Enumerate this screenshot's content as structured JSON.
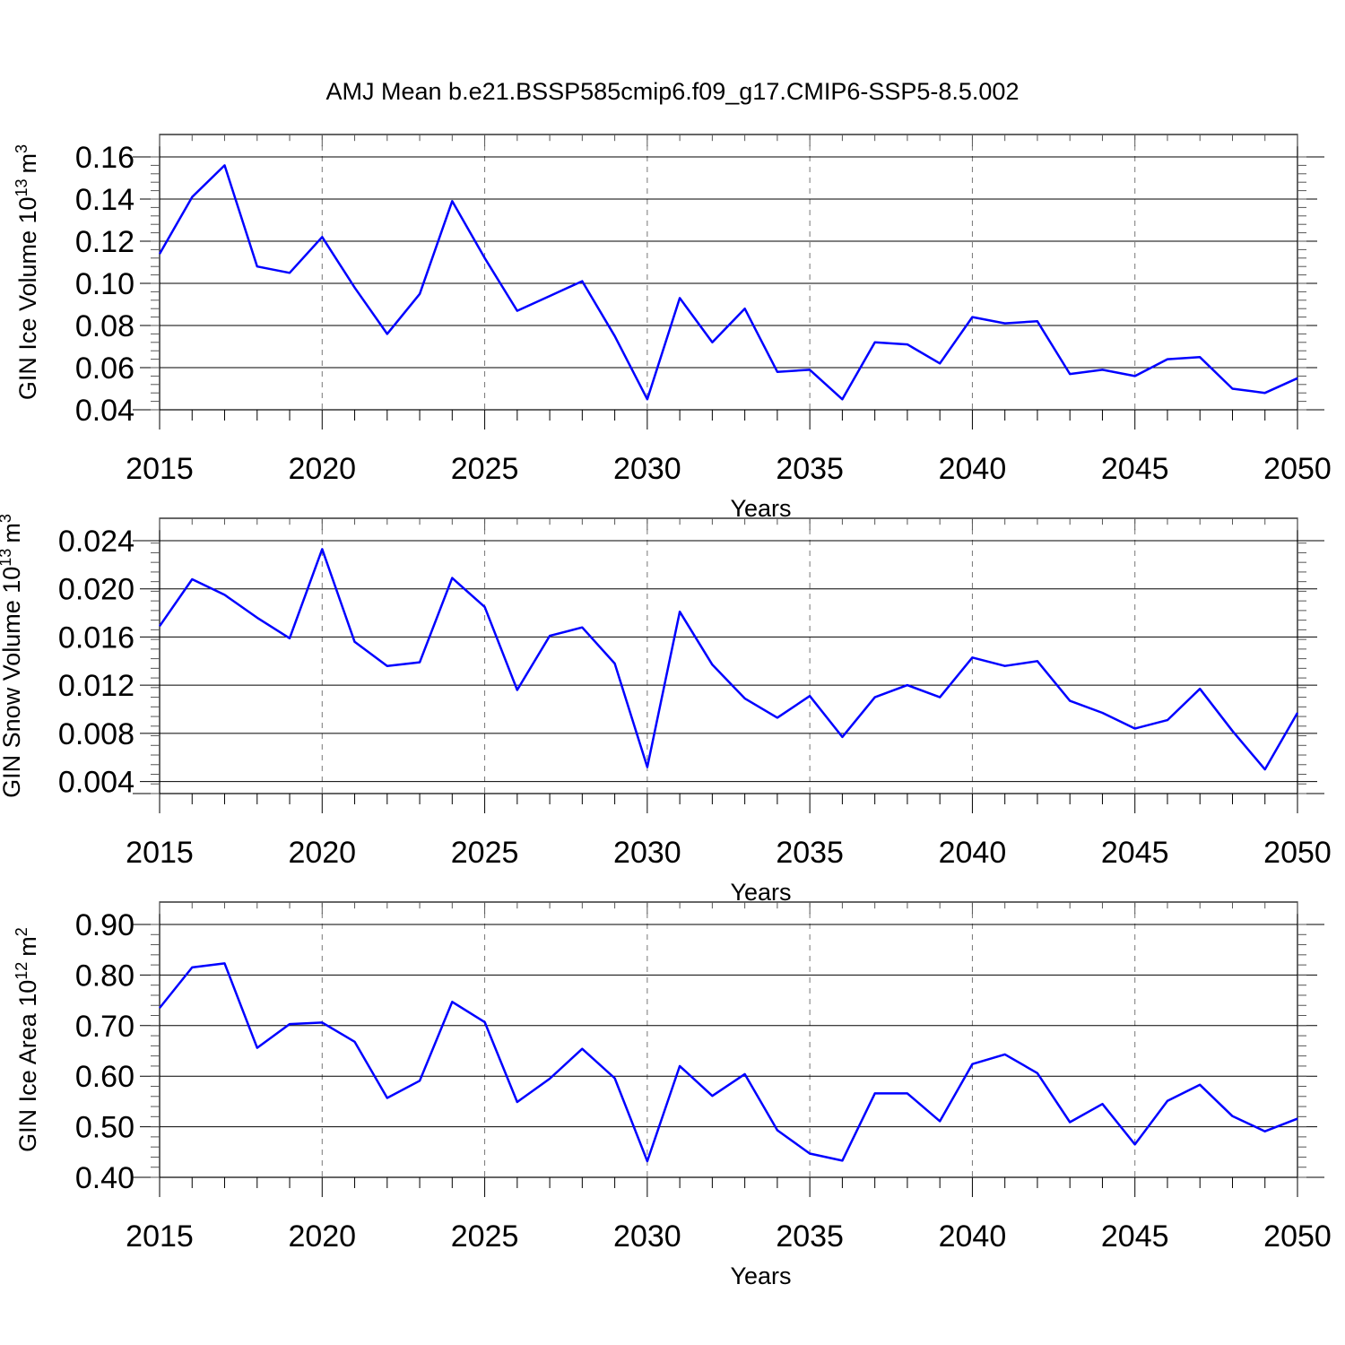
{
  "figure": {
    "title": "AMJ Mean b.e21.BSSP585cmip6.f09_g17.CMIP6-SSP5-8.5.002",
    "line_color": "#0000ff",
    "grid_color": "#777777"
  },
  "chart_data": [
    {
      "type": "line",
      "title": "AMJ Mean b.e21.BSSP585cmip6.f09_g17.CMIP6-SSP5-8.5.002",
      "xlabel": "Years",
      "ylabel": "GIN Ice Volume 10",
      "ylabel_exp": "13",
      "ylabel_unit": "m",
      "ylabel_unit_exp": "3",
      "xlim": [
        2015,
        2050
      ],
      "ylim": [
        0.04,
        0.16
      ],
      "ylim_axis": [
        0.04,
        0.16
      ],
      "x_ticks": [
        2015,
        2020,
        2025,
        2030,
        2035,
        2040,
        2045,
        2050
      ],
      "y_ticks": [
        0.04,
        0.06,
        0.08,
        0.1,
        0.12,
        0.14,
        0.16
      ],
      "y_tick_labels": [
        "0.04",
        "0.06",
        "0.08",
        "0.10",
        "0.12",
        "0.14",
        "0.16"
      ],
      "grid": "dashed vertical at major x ticks",
      "series": [
        {
          "x": [
            2015,
            2016,
            2017,
            2018,
            2019,
            2020,
            2021,
            2022,
            2023,
            2024,
            2025,
            2026,
            2027,
            2028,
            2029,
            2030,
            2031,
            2032,
            2033,
            2034,
            2035,
            2036,
            2037,
            2038,
            2039,
            2040,
            2041,
            2042,
            2043,
            2044,
            2045,
            2046,
            2047,
            2048,
            2049,
            2050
          ],
          "values": [
            0.114,
            0.141,
            0.156,
            0.108,
            0.105,
            0.122,
            0.098,
            0.076,
            0.095,
            0.139,
            0.112,
            0.087,
            0.094,
            0.101,
            0.075,
            0.045,
            0.093,
            0.072,
            0.088,
            0.058,
            0.059,
            0.045,
            0.072,
            0.071,
            0.062,
            0.084,
            0.081,
            0.082,
            0.057,
            0.059,
            0.056,
            0.064,
            0.065,
            0.05,
            0.048,
            0.055
          ]
        }
      ]
    },
    {
      "type": "line",
      "xlabel": "Years",
      "ylabel": "GIN Snow Volume 10",
      "ylabel_exp": "13",
      "ylabel_unit": "m",
      "ylabel_unit_exp": "3",
      "xlim": [
        2015,
        2050
      ],
      "ylim": [
        0.003,
        0.024
      ],
      "ylim_axis": [
        0.003,
        0.024
      ],
      "x_ticks": [
        2015,
        2020,
        2025,
        2030,
        2035,
        2040,
        2045,
        2050
      ],
      "y_ticks": [
        0.004,
        0.008,
        0.012,
        0.016,
        0.02,
        0.024
      ],
      "y_tick_labels": [
        "0.004",
        "0.008",
        "0.012",
        "0.016",
        "0.020",
        "0.024"
      ],
      "grid": "dashed vertical at major x ticks",
      "series": [
        {
          "x": [
            2015,
            2016,
            2017,
            2018,
            2019,
            2020,
            2021,
            2022,
            2023,
            2024,
            2025,
            2026,
            2027,
            2028,
            2029,
            2030,
            2031,
            2032,
            2033,
            2034,
            2035,
            2036,
            2037,
            2038,
            2039,
            2040,
            2041,
            2042,
            2043,
            2044,
            2045,
            2046,
            2047,
            2048,
            2049,
            2050
          ],
          "values": [
            0.0169,
            0.0208,
            0.0195,
            0.0176,
            0.0159,
            0.0233,
            0.0156,
            0.0136,
            0.0139,
            0.0209,
            0.0185,
            0.0116,
            0.0161,
            0.0168,
            0.0138,
            0.0052,
            0.0181,
            0.0137,
            0.0109,
            0.0093,
            0.0111,
            0.0077,
            0.011,
            0.012,
            0.011,
            0.0143,
            0.0136,
            0.014,
            0.0107,
            0.0097,
            0.0084,
            0.0091,
            0.0117,
            0.0082,
            0.005,
            0.0097
          ]
        }
      ]
    },
    {
      "type": "line",
      "xlabel": "Years",
      "ylabel": "GIN Ice Area 10",
      "ylabel_exp": "12",
      "ylabel_unit": "m",
      "ylabel_unit_exp": "2",
      "xlim": [
        2015,
        2050
      ],
      "ylim": [
        0.4,
        0.9
      ],
      "ylim_axis": [
        0.4,
        0.9
      ],
      "x_ticks": [
        2015,
        2020,
        2025,
        2030,
        2035,
        2040,
        2045,
        2050
      ],
      "y_ticks": [
        0.4,
        0.5,
        0.6,
        0.7,
        0.8,
        0.9
      ],
      "y_tick_labels": [
        "0.40",
        "0.50",
        "0.60",
        "0.70",
        "0.80",
        "0.90"
      ],
      "grid": "dashed vertical at major x ticks",
      "series": [
        {
          "x": [
            2015,
            2016,
            2017,
            2018,
            2019,
            2020,
            2021,
            2022,
            2023,
            2024,
            2025,
            2026,
            2027,
            2028,
            2029,
            2030,
            2031,
            2032,
            2033,
            2034,
            2035,
            2036,
            2037,
            2038,
            2039,
            2040,
            2041,
            2042,
            2043,
            2044,
            2045,
            2046,
            2047,
            2048,
            2049,
            2050
          ],
          "values": [
            0.735,
            0.815,
            0.823,
            0.656,
            0.703,
            0.706,
            0.668,
            0.557,
            0.591,
            0.747,
            0.707,
            0.549,
            0.595,
            0.654,
            0.596,
            0.432,
            0.62,
            0.561,
            0.604,
            0.493,
            0.447,
            0.433,
            0.566,
            0.566,
            0.511,
            0.624,
            0.643,
            0.606,
            0.509,
            0.545,
            0.465,
            0.551,
            0.583,
            0.521,
            0.491,
            0.516
          ]
        }
      ]
    }
  ]
}
